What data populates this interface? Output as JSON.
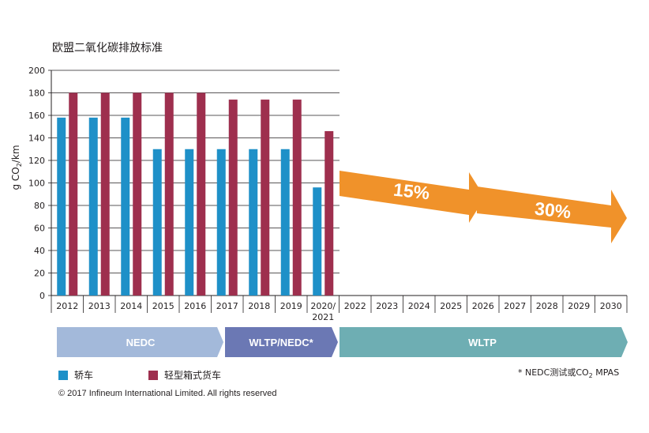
{
  "chart_data": {
    "type": "bar",
    "title": "欧盟二氧化碳排放标准",
    "ylabel": "g CO",
    "ylabel_sub": "2",
    "ylabel_unit": "/km",
    "ylim": [
      0,
      200
    ],
    "yticks": [
      0,
      20,
      40,
      60,
      80,
      100,
      120,
      140,
      160,
      180,
      200
    ],
    "categories": [
      "2012",
      "2013",
      "2014",
      "2015",
      "2016",
      "2017",
      "2018",
      "2019",
      "2020/\n2021",
      "2022",
      "2023",
      "2024",
      "2025",
      "2026",
      "2027",
      "2028",
      "2029",
      "2030"
    ],
    "series": [
      {
        "name": "轿车",
        "color": "#1e90c8",
        "values": [
          158,
          158,
          158,
          130,
          130,
          130,
          130,
          130,
          96,
          null,
          null,
          null,
          null,
          null,
          null,
          null,
          null,
          null
        ]
      },
      {
        "name": "轻型箱式货车",
        "color": "#9e2f4e",
        "values": [
          180,
          180,
          180,
          180,
          180,
          174,
          174,
          174,
          146,
          null,
          null,
          null,
          null,
          null,
          null,
          null,
          null,
          null
        ]
      }
    ],
    "grid": true,
    "annotations": [
      {
        "text": "15%",
        "color": "#f0922a"
      },
      {
        "text": "30%",
        "color": "#f0922a"
      }
    ],
    "phases": [
      {
        "label": "NEDC",
        "color": "#a3b9da"
      },
      {
        "label": "WLTP/NEDC*",
        "color": "#6b78b4"
      },
      {
        "label": "WLTP",
        "color": "#6eaeb3"
      }
    ]
  },
  "legend": {
    "items": [
      {
        "label": "轿车",
        "color": "#1e90c8"
      },
      {
        "label": "轻型箱式货车",
        "color": "#9e2f4e"
      }
    ]
  },
  "footnote": {
    "prefix": "* NEDC测试或CO",
    "sub": "2",
    "suffix": " MPAS"
  },
  "copyright": "© 2017 Infineum International Limited. All rights reserved"
}
